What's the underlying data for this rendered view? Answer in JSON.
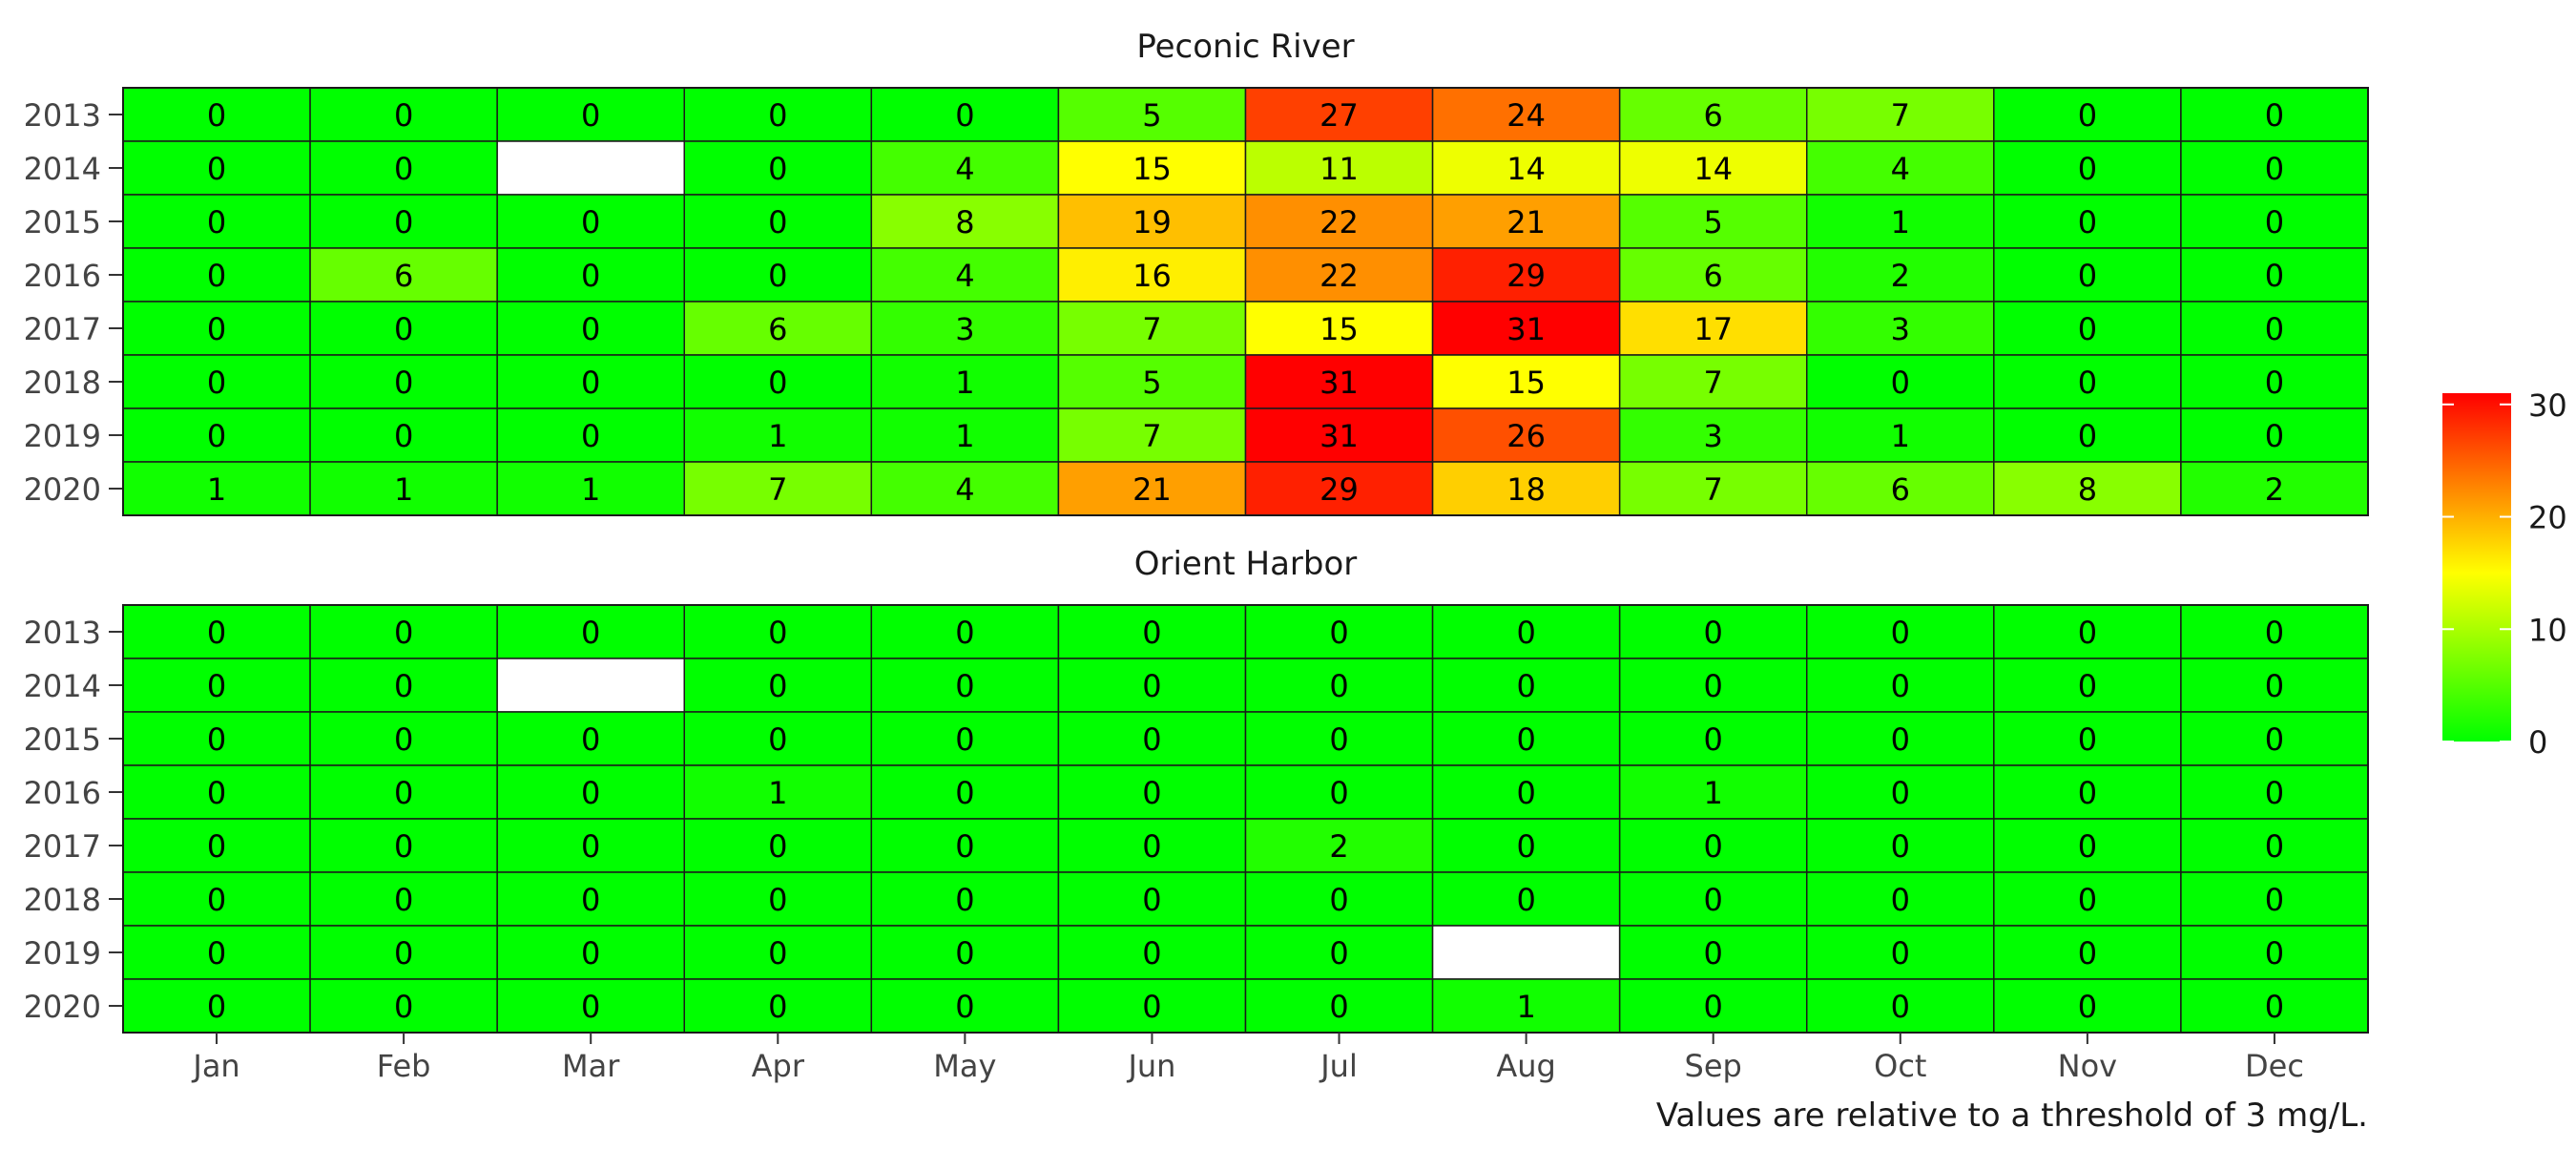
{
  "chart_data": {
    "type": "heatmap",
    "months": [
      "Jan",
      "Feb",
      "Mar",
      "Apr",
      "May",
      "Jun",
      "Jul",
      "Aug",
      "Sep",
      "Oct",
      "Nov",
      "Dec"
    ],
    "years": [
      "2013",
      "2014",
      "2015",
      "2016",
      "2017",
      "2018",
      "2019",
      "2020"
    ],
    "panels": [
      {
        "title": "Peconic River",
        "values": [
          [
            0,
            0,
            0,
            0,
            0,
            5,
            27,
            24,
            6,
            7,
            0,
            0
          ],
          [
            0,
            0,
            null,
            0,
            4,
            15,
            11,
            14,
            14,
            4,
            0,
            0
          ],
          [
            0,
            0,
            0,
            0,
            8,
            19,
            22,
            21,
            5,
            1,
            0,
            0
          ],
          [
            0,
            6,
            0,
            0,
            4,
            16,
            22,
            29,
            6,
            2,
            0,
            0
          ],
          [
            0,
            0,
            0,
            6,
            3,
            7,
            15,
            31,
            17,
            3,
            0,
            0
          ],
          [
            0,
            0,
            0,
            0,
            1,
            5,
            31,
            15,
            7,
            0,
            0,
            0
          ],
          [
            0,
            0,
            0,
            1,
            1,
            7,
            31,
            26,
            3,
            1,
            0,
            0
          ],
          [
            1,
            1,
            1,
            7,
            4,
            21,
            29,
            18,
            7,
            6,
            8,
            2
          ]
        ]
      },
      {
        "title": "Orient Harbor",
        "values": [
          [
            0,
            0,
            0,
            0,
            0,
            0,
            0,
            0,
            0,
            0,
            0,
            0
          ],
          [
            0,
            0,
            null,
            0,
            0,
            0,
            0,
            0,
            0,
            0,
            0,
            0
          ],
          [
            0,
            0,
            0,
            0,
            0,
            0,
            0,
            0,
            0,
            0,
            0,
            0
          ],
          [
            0,
            0,
            0,
            1,
            0,
            0,
            0,
            0,
            1,
            0,
            0,
            0
          ],
          [
            0,
            0,
            0,
            0,
            0,
            0,
            2,
            0,
            0,
            0,
            0,
            0
          ],
          [
            0,
            0,
            0,
            0,
            0,
            0,
            0,
            0,
            0,
            0,
            0,
            0
          ],
          [
            0,
            0,
            0,
            0,
            0,
            0,
            0,
            null,
            0,
            0,
            0,
            0
          ],
          [
            0,
            0,
            0,
            0,
            0,
            0,
            0,
            1,
            0,
            0,
            0,
            0
          ]
        ]
      }
    ],
    "color_scale": {
      "range": [
        0,
        31
      ],
      "stops": [
        {
          "value": 0,
          "color": "#00ff00"
        },
        {
          "value": 15,
          "color": "#ffff00"
        },
        {
          "value": 31,
          "color": "#ff0000"
        }
      ],
      "ticks": [
        0,
        10,
        20,
        30
      ],
      "missing_color": "#ffffff"
    },
    "legend_position": "right",
    "caption": "Values are relative to a threshold of 3 mg/L."
  }
}
